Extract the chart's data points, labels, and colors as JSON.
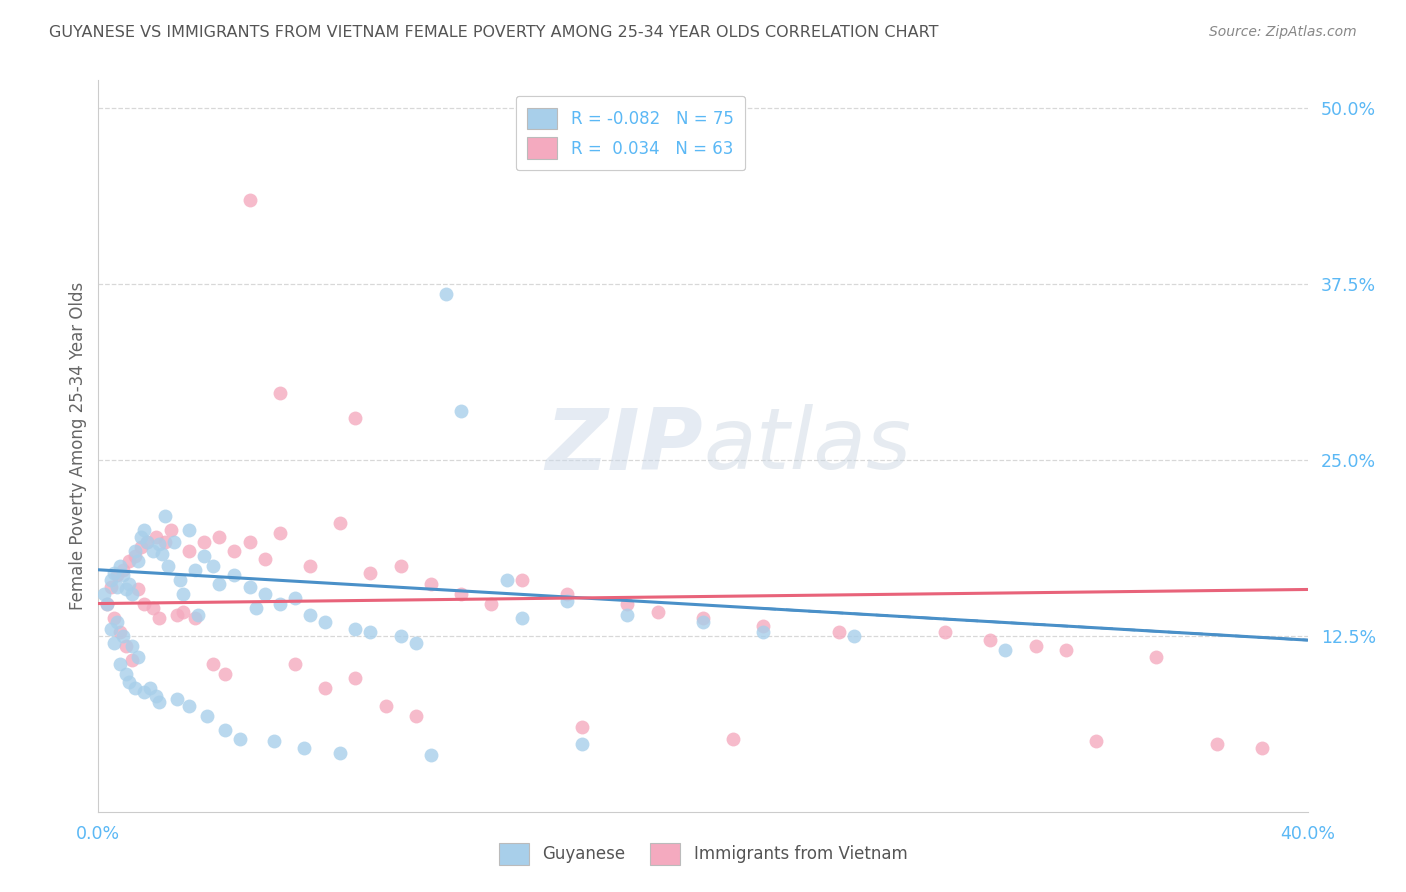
{
  "title": "GUYANESE VS IMMIGRANTS FROM VIETNAM FEMALE POVERTY AMONG 25-34 YEAR OLDS CORRELATION CHART",
  "source": "Source: ZipAtlas.com",
  "ylabel": "Female Poverty Among 25-34 Year Olds",
  "xlim": [
    0.0,
    0.4
  ],
  "ylim": [
    0.0,
    0.52
  ],
  "yticks_right": [
    0.125,
    0.25,
    0.375,
    0.5
  ],
  "yticklabels_right": [
    "12.5%",
    "25.0%",
    "37.5%",
    "50.0%"
  ],
  "legend_label1": "R = -0.082   N = 75",
  "legend_label2": "R =  0.034   N = 63",
  "legend_label1_short": "Guyanese",
  "legend_label2_short": "Immigrants from Vietnam",
  "color_blue": "#A8CFEA",
  "color_pink": "#F4AABF",
  "color_blue_line": "#4A90C8",
  "color_pink_line": "#E8637A",
  "R_blue": -0.082,
  "R_pink": 0.034,
  "N_blue": 75,
  "N_pink": 63,
  "blue_line_x": [
    0.0,
    0.4
  ],
  "blue_line_y": [
    0.172,
    0.122
  ],
  "pink_line_x": [
    0.0,
    0.4
  ],
  "pink_line_y": [
    0.148,
    0.158
  ],
  "blue_x": [
    0.002,
    0.003,
    0.004,
    0.004,
    0.005,
    0.005,
    0.006,
    0.006,
    0.007,
    0.007,
    0.008,
    0.008,
    0.009,
    0.009,
    0.01,
    0.01,
    0.011,
    0.011,
    0.012,
    0.012,
    0.013,
    0.013,
    0.014,
    0.015,
    0.015,
    0.016,
    0.017,
    0.018,
    0.019,
    0.02,
    0.02,
    0.021,
    0.022,
    0.023,
    0.025,
    0.026,
    0.027,
    0.028,
    0.03,
    0.03,
    0.032,
    0.033,
    0.035,
    0.036,
    0.038,
    0.04,
    0.042,
    0.045,
    0.047,
    0.05,
    0.052,
    0.055,
    0.058,
    0.06,
    0.065,
    0.068,
    0.07,
    0.075,
    0.08,
    0.085,
    0.09,
    0.1,
    0.105,
    0.11,
    0.115,
    0.12,
    0.135,
    0.14,
    0.155,
    0.16,
    0.175,
    0.2,
    0.22,
    0.25,
    0.3
  ],
  "blue_y": [
    0.155,
    0.148,
    0.165,
    0.13,
    0.17,
    0.12,
    0.16,
    0.135,
    0.175,
    0.105,
    0.168,
    0.125,
    0.158,
    0.098,
    0.162,
    0.092,
    0.155,
    0.118,
    0.185,
    0.088,
    0.178,
    0.11,
    0.195,
    0.2,
    0.085,
    0.192,
    0.088,
    0.185,
    0.082,
    0.19,
    0.078,
    0.183,
    0.21,
    0.175,
    0.192,
    0.08,
    0.165,
    0.155,
    0.2,
    0.075,
    0.172,
    0.14,
    0.182,
    0.068,
    0.175,
    0.162,
    0.058,
    0.168,
    0.052,
    0.16,
    0.145,
    0.155,
    0.05,
    0.148,
    0.152,
    0.045,
    0.14,
    0.135,
    0.042,
    0.13,
    0.128,
    0.125,
    0.12,
    0.04,
    0.368,
    0.285,
    0.165,
    0.138,
    0.15,
    0.048,
    0.14,
    0.135,
    0.128,
    0.125,
    0.115
  ],
  "pink_x": [
    0.003,
    0.004,
    0.005,
    0.006,
    0.007,
    0.008,
    0.009,
    0.01,
    0.011,
    0.012,
    0.013,
    0.014,
    0.015,
    0.016,
    0.018,
    0.019,
    0.02,
    0.022,
    0.024,
    0.026,
    0.028,
    0.03,
    0.032,
    0.035,
    0.038,
    0.04,
    0.042,
    0.045,
    0.05,
    0.055,
    0.06,
    0.065,
    0.07,
    0.075,
    0.08,
    0.085,
    0.085,
    0.09,
    0.095,
    0.1,
    0.105,
    0.11,
    0.12,
    0.13,
    0.14,
    0.155,
    0.16,
    0.175,
    0.185,
    0.2,
    0.21,
    0.22,
    0.245,
    0.28,
    0.295,
    0.31,
    0.32,
    0.33,
    0.35,
    0.37,
    0.385,
    0.05,
    0.06
  ],
  "pink_y": [
    0.148,
    0.16,
    0.138,
    0.168,
    0.128,
    0.172,
    0.118,
    0.178,
    0.108,
    0.182,
    0.158,
    0.188,
    0.148,
    0.192,
    0.145,
    0.195,
    0.138,
    0.192,
    0.2,
    0.14,
    0.142,
    0.185,
    0.138,
    0.192,
    0.105,
    0.195,
    0.098,
    0.185,
    0.192,
    0.18,
    0.198,
    0.105,
    0.175,
    0.088,
    0.205,
    0.28,
    0.095,
    0.17,
    0.075,
    0.175,
    0.068,
    0.162,
    0.155,
    0.148,
    0.165,
    0.155,
    0.06,
    0.148,
    0.142,
    0.138,
    0.052,
    0.132,
    0.128,
    0.128,
    0.122,
    0.118,
    0.115,
    0.05,
    0.11,
    0.048,
    0.045,
    0.435,
    0.298
  ],
  "watermark_zip": "ZIP",
  "watermark_atlas": "atlas",
  "background_color": "#ffffff",
  "grid_color": "#d8d8d8",
  "title_color": "#555555",
  "axis_color": "#5BB8F5",
  "source_color": "#888888"
}
